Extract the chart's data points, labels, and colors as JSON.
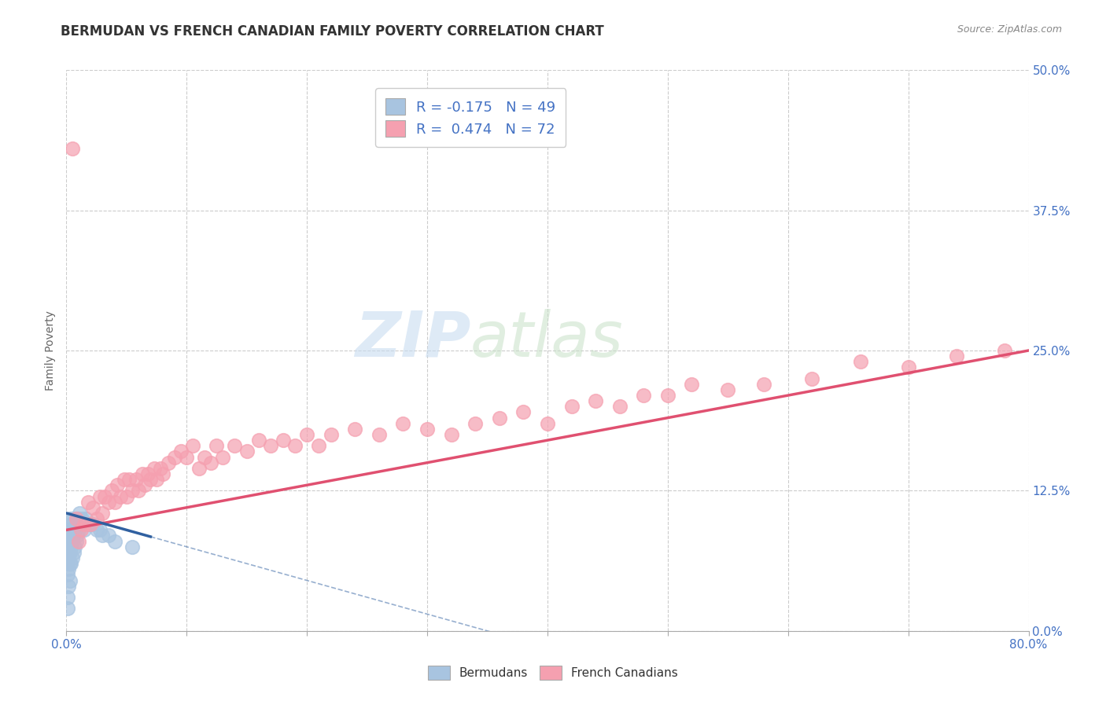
{
  "title": "BERMUDAN VS FRENCH CANADIAN FAMILY POVERTY CORRELATION CHART",
  "source": "Source: ZipAtlas.com",
  "ylabel": "Family Poverty",
  "yticks": [
    "0.0%",
    "12.5%",
    "25.0%",
    "37.5%",
    "50.0%"
  ],
  "ytick_vals": [
    0.0,
    0.125,
    0.25,
    0.375,
    0.5
  ],
  "xtick_vals": [
    0.0,
    0.1,
    0.2,
    0.3,
    0.4,
    0.5,
    0.6,
    0.7,
    0.8
  ],
  "xlim": [
    0.0,
    0.8
  ],
  "ylim": [
    0.0,
    0.5
  ],
  "legend_R_bermudan": "-0.175",
  "legend_N_bermudan": "49",
  "legend_R_french": "0.474",
  "legend_N_french": "72",
  "bermudan_color": "#a8c4e0",
  "french_color": "#f5a0b0",
  "bermudan_line_color": "#3060a0",
  "french_line_color": "#e05070",
  "background_color": "#ffffff",
  "bermudan_x": [
    0.001,
    0.001,
    0.001,
    0.001,
    0.001,
    0.002,
    0.002,
    0.002,
    0.002,
    0.002,
    0.002,
    0.003,
    0.003,
    0.003,
    0.003,
    0.003,
    0.003,
    0.004,
    0.004,
    0.004,
    0.004,
    0.005,
    0.005,
    0.005,
    0.005,
    0.006,
    0.006,
    0.007,
    0.007,
    0.008,
    0.008,
    0.009,
    0.009,
    0.01,
    0.01,
    0.011,
    0.012,
    0.013,
    0.015,
    0.016,
    0.018,
    0.02,
    0.022,
    0.025,
    0.028,
    0.03,
    0.035,
    0.04,
    0.055
  ],
  "bermudan_y": [
    0.02,
    0.03,
    0.05,
    0.06,
    0.07,
    0.04,
    0.055,
    0.065,
    0.075,
    0.08,
    0.09,
    0.045,
    0.06,
    0.07,
    0.08,
    0.09,
    0.1,
    0.06,
    0.075,
    0.085,
    0.095,
    0.065,
    0.08,
    0.09,
    0.1,
    0.07,
    0.085,
    0.075,
    0.09,
    0.08,
    0.1,
    0.085,
    0.095,
    0.09,
    0.1,
    0.105,
    0.095,
    0.1,
    0.09,
    0.1,
    0.095,
    0.095,
    0.095,
    0.09,
    0.09,
    0.085,
    0.085,
    0.08,
    0.075
  ],
  "french_x": [
    0.005,
    0.008,
    0.01,
    0.012,
    0.015,
    0.018,
    0.02,
    0.022,
    0.025,
    0.028,
    0.03,
    0.032,
    0.035,
    0.038,
    0.04,
    0.042,
    0.045,
    0.048,
    0.05,
    0.052,
    0.055,
    0.058,
    0.06,
    0.063,
    0.065,
    0.068,
    0.07,
    0.073,
    0.075,
    0.078,
    0.08,
    0.085,
    0.09,
    0.095,
    0.1,
    0.105,
    0.11,
    0.115,
    0.12,
    0.125,
    0.13,
    0.14,
    0.15,
    0.16,
    0.17,
    0.18,
    0.19,
    0.2,
    0.21,
    0.22,
    0.24,
    0.26,
    0.28,
    0.3,
    0.32,
    0.34,
    0.36,
    0.38,
    0.4,
    0.42,
    0.44,
    0.46,
    0.48,
    0.5,
    0.52,
    0.55,
    0.58,
    0.62,
    0.66,
    0.7,
    0.74,
    0.78
  ],
  "french_y": [
    0.43,
    0.1,
    0.08,
    0.09,
    0.095,
    0.115,
    0.095,
    0.11,
    0.1,
    0.12,
    0.105,
    0.12,
    0.115,
    0.125,
    0.115,
    0.13,
    0.12,
    0.135,
    0.12,
    0.135,
    0.125,
    0.135,
    0.125,
    0.14,
    0.13,
    0.14,
    0.135,
    0.145,
    0.135,
    0.145,
    0.14,
    0.15,
    0.155,
    0.16,
    0.155,
    0.165,
    0.145,
    0.155,
    0.15,
    0.165,
    0.155,
    0.165,
    0.16,
    0.17,
    0.165,
    0.17,
    0.165,
    0.175,
    0.165,
    0.175,
    0.18,
    0.175,
    0.185,
    0.18,
    0.175,
    0.185,
    0.19,
    0.195,
    0.185,
    0.2,
    0.205,
    0.2,
    0.21,
    0.21,
    0.22,
    0.215,
    0.22,
    0.225,
    0.24,
    0.235,
    0.245,
    0.25
  ]
}
